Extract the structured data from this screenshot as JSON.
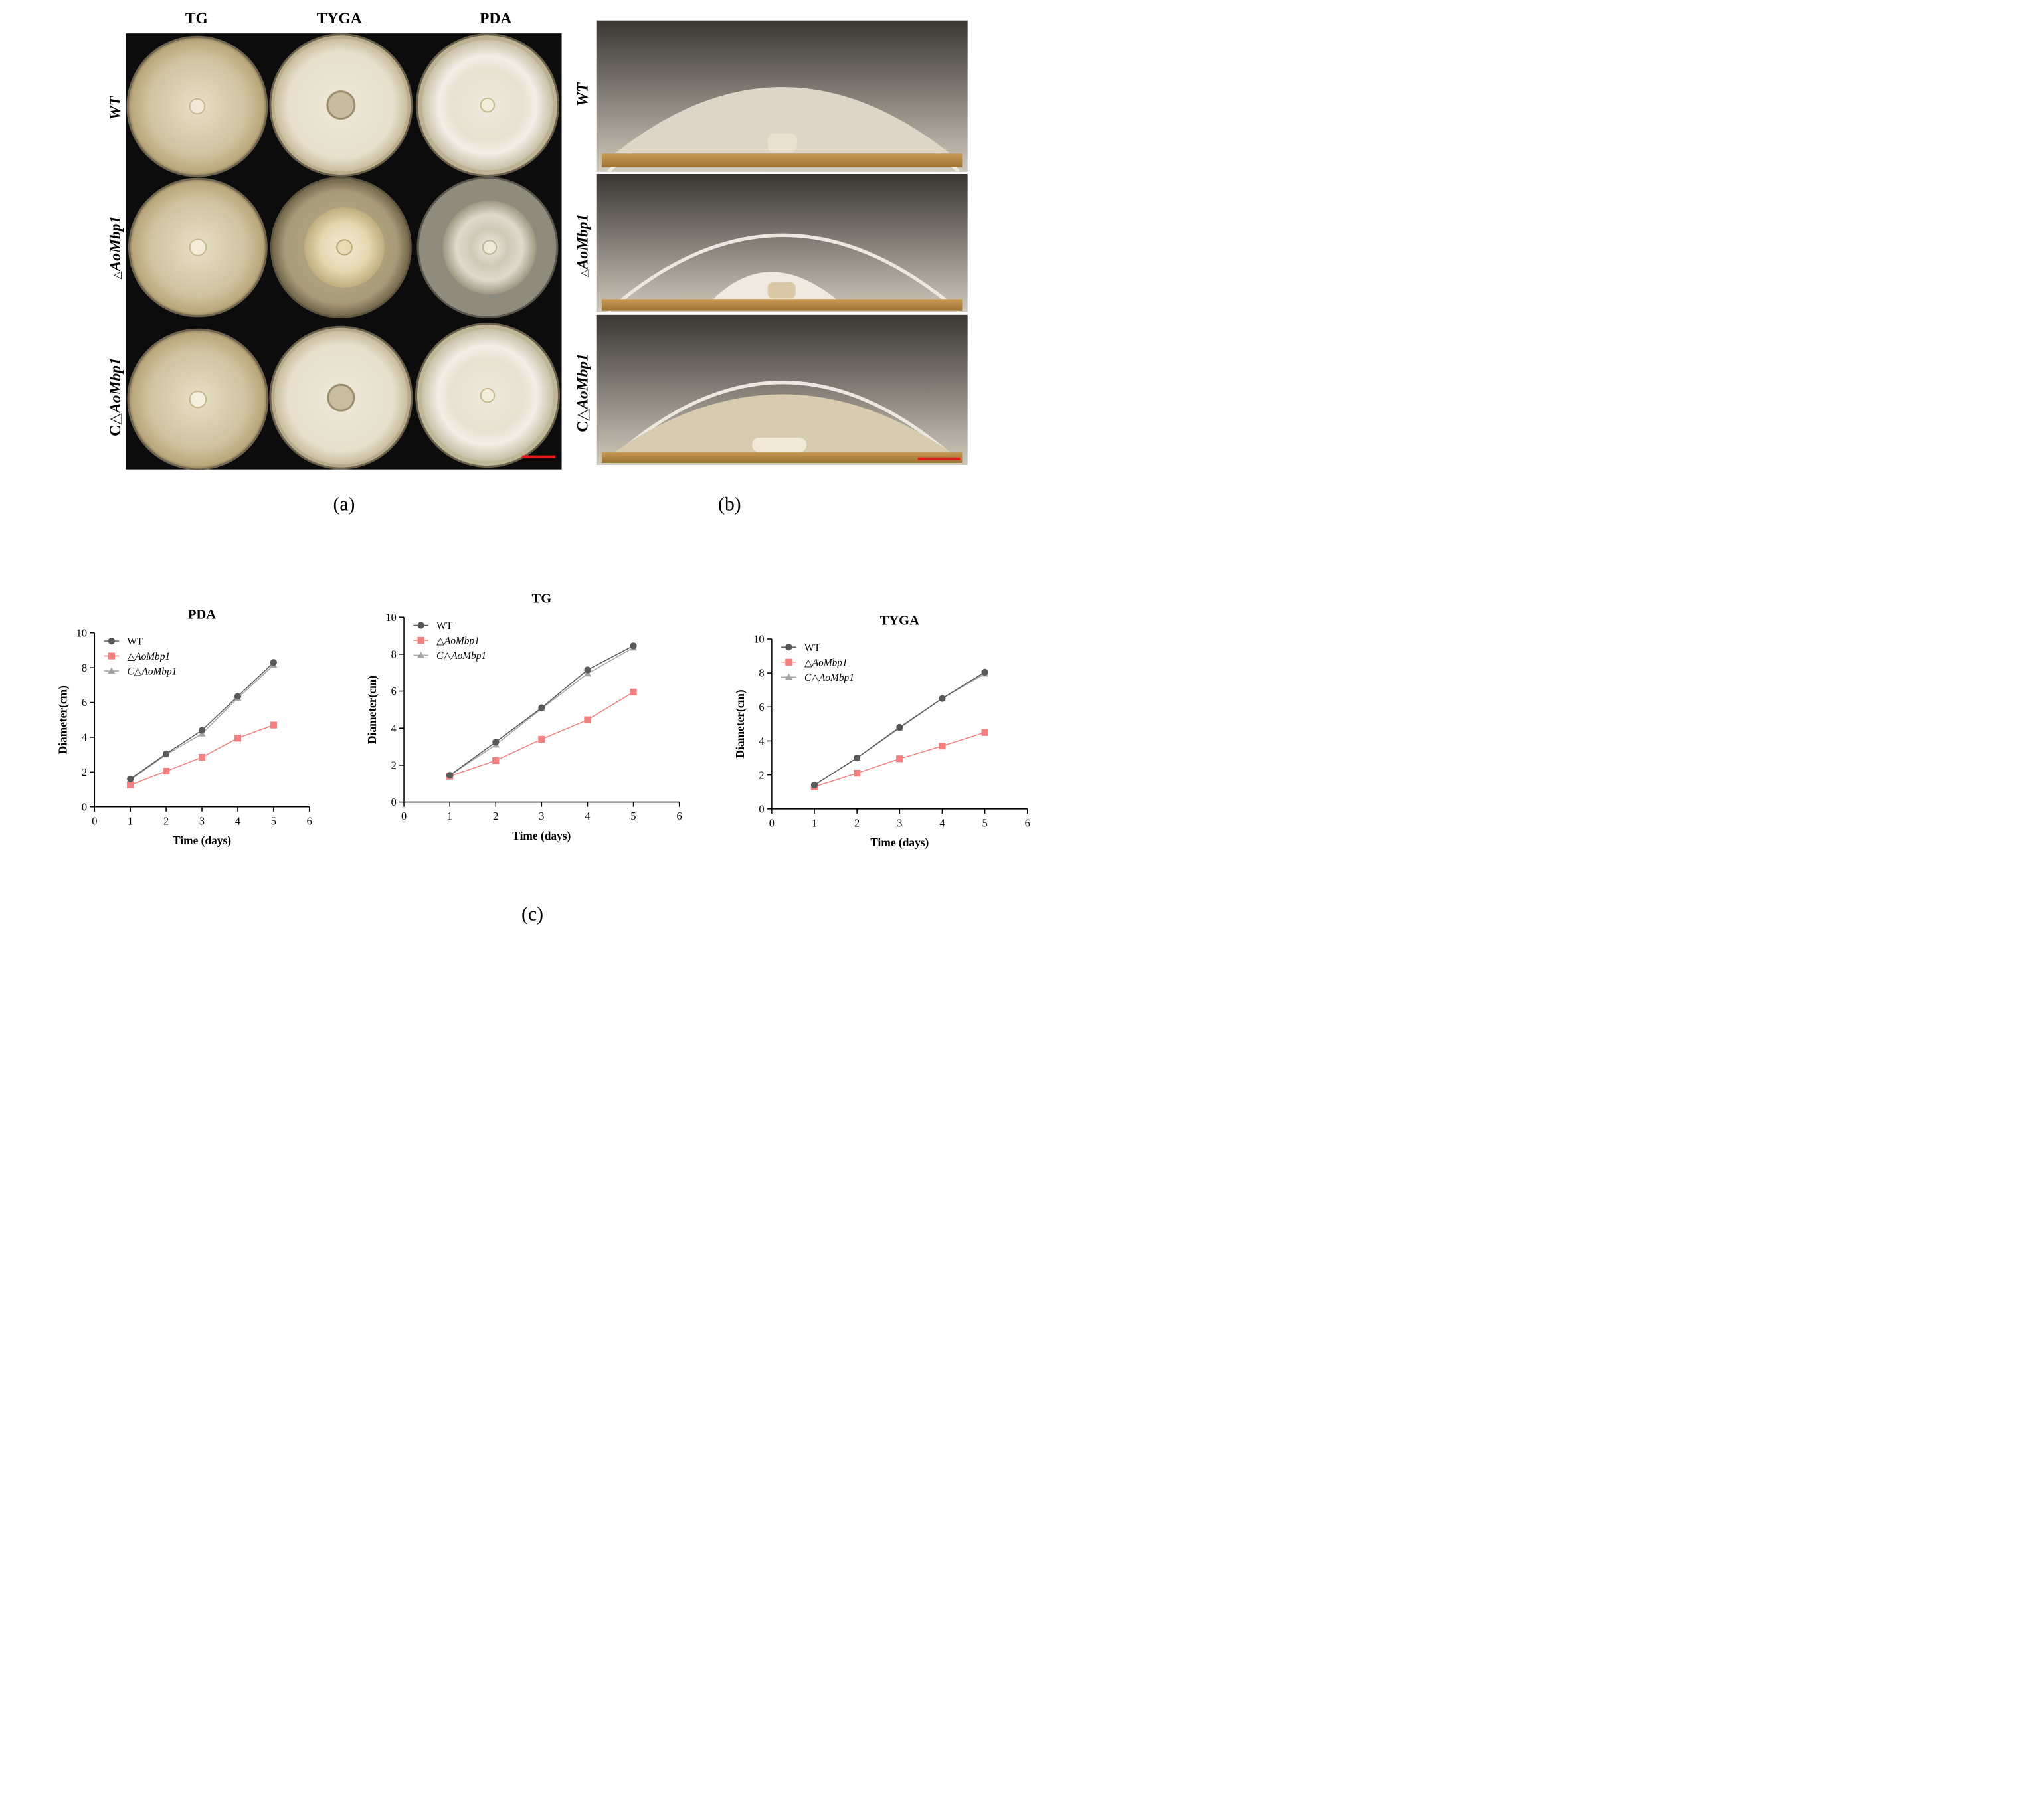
{
  "panel_a": {
    "label": "(a)",
    "column_headers": [
      "TG",
      "TYGA",
      "PDA"
    ],
    "row_labels": [
      {
        "prefix": "",
        "italic": "WT"
      },
      {
        "prefix": "△",
        "italic": "AoMbp1"
      },
      {
        "prefix": "C△",
        "italic": "AoMbp1"
      }
    ]
  },
  "panel_b": {
    "label": "(b)",
    "row_labels": [
      {
        "prefix": "",
        "italic": "WT"
      },
      {
        "prefix": "△",
        "italic": "AoMbp1"
      },
      {
        "prefix": "C△",
        "italic": "AoMbp1"
      }
    ]
  },
  "panel_c": {
    "label": "(c)"
  },
  "colors": {
    "wt": "#595959",
    "mutant": "#f28080",
    "complement": "#a6a6a6",
    "scale_bar": "#e0191c"
  },
  "chart_data": [
    {
      "type": "line",
      "title": "PDA",
      "xlabel": "Time (days)",
      "ylabel": "Diameter(cm)",
      "xlim": [
        0,
        6
      ],
      "ylim": [
        0,
        10
      ],
      "xticks": [
        "0",
        "1",
        "2",
        "3",
        "4",
        "5",
        "6"
      ],
      "yticks": [
        "0",
        "2",
        "4",
        "6",
        "8",
        "10"
      ],
      "x": [
        1,
        2,
        3,
        4,
        5
      ],
      "series": [
        {
          "name": "WT",
          "values": [
            1.6,
            3.05,
            4.4,
            6.35,
            8.3
          ]
        },
        {
          "name": "△AoMbp1",
          "values": [
            1.25,
            2.05,
            2.85,
            3.95,
            4.7
          ]
        },
        {
          "name": "C△AoMbp1",
          "values": [
            1.55,
            3.0,
            4.2,
            6.25,
            8.15
          ]
        }
      ],
      "legend_position": "top-left"
    },
    {
      "type": "line",
      "title": "TG",
      "xlabel": "Time (days)",
      "ylabel": "Diameter(cm)",
      "xlim": [
        0,
        6
      ],
      "ylim": [
        0,
        10
      ],
      "xticks": [
        "0",
        "1",
        "2",
        "3",
        "4",
        "5",
        "6"
      ],
      "yticks": [
        "0",
        "2",
        "4",
        "6",
        "8",
        "10"
      ],
      "x": [
        1,
        2,
        3,
        4,
        5
      ],
      "series": [
        {
          "name": "WT",
          "values": [
            1.45,
            3.25,
            5.1,
            7.15,
            8.45
          ]
        },
        {
          "name": "△AoMbp1",
          "values": [
            1.4,
            2.25,
            3.4,
            4.45,
            5.95
          ]
        },
        {
          "name": "C△AoMbp1",
          "values": [
            1.45,
            3.1,
            5.05,
            6.95,
            8.35
          ]
        }
      ],
      "legend_position": "top-left"
    },
    {
      "type": "line",
      "title": "TYGA",
      "xlabel": "Time (days)",
      "ylabel": "Diameter(cm)",
      "xlim": [
        0,
        6
      ],
      "ylim": [
        0,
        10
      ],
      "xticks": [
        "0",
        "1",
        "2",
        "3",
        "4",
        "5",
        "6"
      ],
      "yticks": [
        "0",
        "2",
        "4",
        "6",
        "8",
        "10"
      ],
      "x": [
        1,
        2,
        3,
        4,
        5
      ],
      "series": [
        {
          "name": "WT",
          "values": [
            1.4,
            3.0,
            4.8,
            6.5,
            8.05
          ]
        },
        {
          "name": "△AoMbp1",
          "values": [
            1.3,
            2.1,
            2.95,
            3.7,
            4.5
          ]
        },
        {
          "name": "C△AoMbp1",
          "values": [
            1.4,
            3.0,
            4.75,
            6.5,
            7.95
          ]
        }
      ],
      "legend_position": "top-left"
    }
  ]
}
